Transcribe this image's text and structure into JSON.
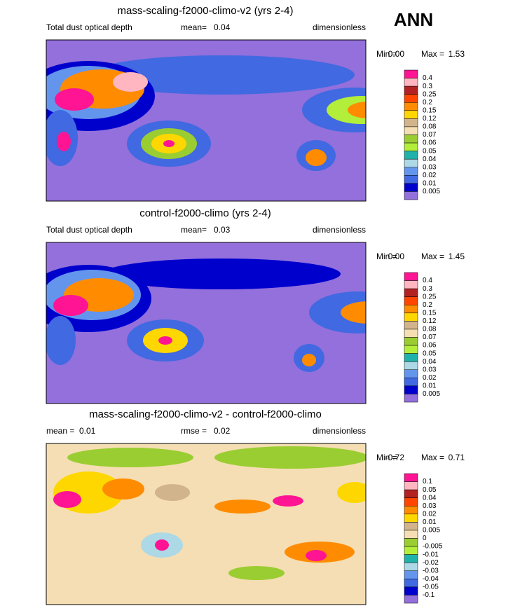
{
  "season": "ANN",
  "panels": [
    {
      "title": "mass-scaling-f2000-climo-v2 (yrs 2-4)",
      "variable": "Total dust optical depth",
      "stats": [
        {
          "label": "mean=",
          "value": "0.04"
        }
      ],
      "units": "dimensionless",
      "min_label": "Min =",
      "min": "0.00",
      "max_label": "Max =",
      "max": "1.53",
      "map_background": "#9370db",
      "levels": [
        "0.4",
        "0.3",
        "0.25",
        "0.2",
        "0.15",
        "0.12",
        "0.08",
        "0.07",
        "0.06",
        "0.05",
        "0.04",
        "0.03",
        "0.02",
        "0.01",
        "0.005"
      ],
      "colors": [
        "#ff1493",
        "#ffb6c1",
        "#b22222",
        "#ff4500",
        "#ff8c00",
        "#ffd700",
        "#d2b48c",
        "#f5deb3",
        "#9acd32",
        "#b3ee3a",
        "#20b2aa",
        "#add8e6",
        "#6495ed",
        "#4169e1",
        "#0000cd",
        "#9370db"
      ]
    },
    {
      "title": "control-f2000-climo (yrs 2-4)",
      "variable": "Total dust optical depth",
      "stats": [
        {
          "label": "mean=",
          "value": "0.03"
        }
      ],
      "units": "dimensionless",
      "min_label": "Min =",
      "min": "0.00",
      "max_label": "Max =",
      "max": "1.45",
      "map_background": "#9370db",
      "levels": [
        "0.4",
        "0.3",
        "0.25",
        "0.2",
        "0.15",
        "0.12",
        "0.08",
        "0.07",
        "0.06",
        "0.05",
        "0.04",
        "0.03",
        "0.02",
        "0.01",
        "0.005"
      ],
      "colors": [
        "#ff1493",
        "#ffb6c1",
        "#b22222",
        "#ff4500",
        "#ff8c00",
        "#ffd700",
        "#d2b48c",
        "#f5deb3",
        "#9acd32",
        "#b3ee3a",
        "#20b2aa",
        "#add8e6",
        "#6495ed",
        "#4169e1",
        "#0000cd",
        "#9370db"
      ]
    },
    {
      "title": "mass-scaling-f2000-climo-v2 - control-f2000-climo",
      "variable": null,
      "stats": [
        {
          "label": "mean =",
          "value": "0.01"
        },
        {
          "label": "rmse =",
          "value": "0.02"
        }
      ],
      "units": "dimensionless",
      "min_label": "Min =",
      "min": "-0.72",
      "max_label": "Max =",
      "max": "0.71",
      "map_background": "#f5deb3",
      "levels": [
        "0.1",
        "0.05",
        "0.04",
        "0.03",
        "0.02",
        "0.01",
        "0.005",
        "0",
        "-0.005",
        "-0.01",
        "-0.02",
        "-0.03",
        "-0.04",
        "-0.05",
        "-0.1"
      ],
      "colors": [
        "#ff1493",
        "#ffb6c1",
        "#b22222",
        "#ff4500",
        "#ff8c00",
        "#ffd700",
        "#d2b48c",
        "#f5deb3",
        "#9acd32",
        "#b3ee3a",
        "#20b2aa",
        "#add8e6",
        "#6495ed",
        "#4169e1",
        "#0000cd",
        "#9370db"
      ]
    }
  ]
}
